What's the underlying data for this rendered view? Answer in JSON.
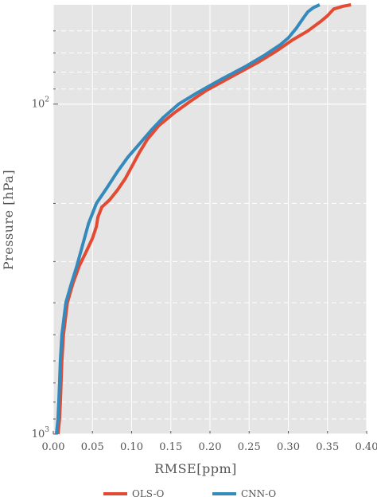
{
  "chart_data": {
    "type": "line",
    "xlabel": "RMSE[ppm]",
    "ylabel": "Pressure [hPa]",
    "xlim": [
      0.0,
      0.4
    ],
    "ylim": [
      1000,
      50
    ],
    "y_scale": "log",
    "grid": true,
    "legend_position": "bottom",
    "x_ticks": [
      "0.00",
      "0.05",
      "0.10",
      "0.15",
      "0.20",
      "0.25",
      "0.30",
      "0.35",
      "0.40"
    ],
    "y_major_ticks": [
      {
        "value": 100,
        "base": "10",
        "exp": "2"
      },
      {
        "value": 1000,
        "base": "10",
        "exp": "3"
      }
    ],
    "series": [
      {
        "name": "OLS-O",
        "color": "#e24a33",
        "points": [
          [
            0.006,
            1000
          ],
          [
            0.007,
            950
          ],
          [
            0.008,
            900
          ],
          [
            0.009,
            800
          ],
          [
            0.01,
            700
          ],
          [
            0.011,
            600
          ],
          [
            0.013,
            500
          ],
          [
            0.018,
            400
          ],
          [
            0.025,
            350
          ],
          [
            0.033,
            310
          ],
          [
            0.042,
            280
          ],
          [
            0.05,
            255
          ],
          [
            0.055,
            235
          ],
          [
            0.057,
            220
          ],
          [
            0.062,
            205
          ],
          [
            0.072,
            195
          ],
          [
            0.082,
            182
          ],
          [
            0.092,
            168
          ],
          [
            0.1,
            155
          ],
          [
            0.11,
            140
          ],
          [
            0.12,
            128
          ],
          [
            0.135,
            116
          ],
          [
            0.155,
            106
          ],
          [
            0.175,
            98
          ],
          [
            0.195,
            91
          ],
          [
            0.23,
            82
          ],
          [
            0.26,
            75
          ],
          [
            0.285,
            69
          ],
          [
            0.305,
            64
          ],
          [
            0.325,
            60
          ],
          [
            0.342,
            56
          ],
          [
            0.35,
            54
          ],
          [
            0.358,
            51.5
          ],
          [
            0.37,
            50.5
          ],
          [
            0.38,
            50
          ]
        ]
      },
      {
        "name": "CNN-O",
        "color": "#348abd",
        "points": [
          [
            0.004,
            1000
          ],
          [
            0.005,
            950
          ],
          [
            0.006,
            900
          ],
          [
            0.007,
            800
          ],
          [
            0.008,
            700
          ],
          [
            0.009,
            600
          ],
          [
            0.011,
            500
          ],
          [
            0.016,
            400
          ],
          [
            0.023,
            350
          ],
          [
            0.03,
            310
          ],
          [
            0.037,
            270
          ],
          [
            0.045,
            230
          ],
          [
            0.055,
            200
          ],
          [
            0.068,
            180
          ],
          [
            0.082,
            160
          ],
          [
            0.095,
            145
          ],
          [
            0.11,
            132
          ],
          [
            0.125,
            120
          ],
          [
            0.14,
            110
          ],
          [
            0.16,
            100
          ],
          [
            0.185,
            92
          ],
          [
            0.215,
            84
          ],
          [
            0.245,
            77
          ],
          [
            0.27,
            71
          ],
          [
            0.29,
            66
          ],
          [
            0.3,
            63
          ],
          [
            0.31,
            59
          ],
          [
            0.32,
            54.5
          ],
          [
            0.325,
            52.5
          ],
          [
            0.332,
            51
          ],
          [
            0.34,
            50
          ]
        ]
      }
    ]
  }
}
